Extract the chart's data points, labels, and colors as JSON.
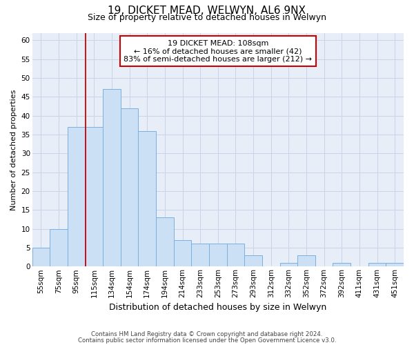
{
  "title_line1": "19, DICKET MEAD, WELWYN, AL6 9NX",
  "title_line2": "Size of property relative to detached houses in Welwyn",
  "xlabel": "Distribution of detached houses by size in Welwyn",
  "ylabel": "Number of detached properties",
  "categories": [
    "55sqm",
    "75sqm",
    "95sqm",
    "115sqm",
    "134sqm",
    "154sqm",
    "174sqm",
    "194sqm",
    "214sqm",
    "233sqm",
    "253sqm",
    "273sqm",
    "293sqm",
    "312sqm",
    "332sqm",
    "352sqm",
    "372sqm",
    "392sqm",
    "411sqm",
    "431sqm",
    "451sqm"
  ],
  "values": [
    5,
    10,
    37,
    37,
    47,
    42,
    36,
    13,
    7,
    6,
    6,
    6,
    3,
    0,
    1,
    3,
    0,
    1,
    0,
    1,
    1
  ],
  "bar_color": "#cce0f5",
  "bar_edge_color": "#7aafe0",
  "grid_color": "#c8d4e8",
  "background_color": "#e8eef8",
  "annotation_line1": "19 DICKET MEAD: 108sqm",
  "annotation_line2": "← 16% of detached houses are smaller (42)",
  "annotation_line3": "83% of semi-detached houses are larger (212) →",
  "annotation_box_color": "#ffffff",
  "annotation_box_edge": "#cc0000",
  "property_line_x": 2.5,
  "ylim": [
    0,
    62
  ],
  "yticks": [
    0,
    5,
    10,
    15,
    20,
    25,
    30,
    35,
    40,
    45,
    50,
    55,
    60
  ],
  "footnote1": "Contains HM Land Registry data © Crown copyright and database right 2024.",
  "footnote2": "Contains public sector information licensed under the Open Government Licence v3.0.",
  "title1_fontsize": 11,
  "title2_fontsize": 9,
  "ylabel_fontsize": 8,
  "xlabel_fontsize": 9,
  "tick_fontsize": 7.5,
  "annot_fontsize": 8
}
